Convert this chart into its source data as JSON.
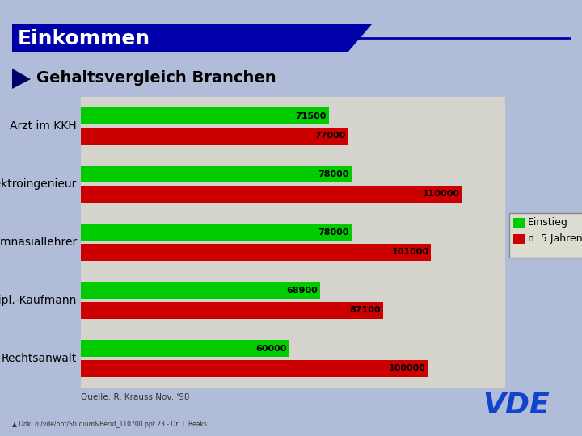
{
  "title": "Einkommen",
  "subtitle": "Gehaltsvergleich Branchen",
  "categories": [
    "Arzt im KKH",
    "Elektroingenieur",
    "Gymnasiallehrer",
    "Dipl.-Kaufmann",
    "Rechtsanwalt"
  ],
  "einstieg": [
    71500,
    78000,
    78000,
    68900,
    60000
  ],
  "n5jahren": [
    77000,
    110000,
    101000,
    87100,
    100000
  ],
  "bar_color_green": "#00CC00",
  "bar_color_red": "#CC0000",
  "bg_slide": "#B0BCD8",
  "bg_chart": "#D4D4CC",
  "bg_title": "#0000AA",
  "title_text_color": "#FFFFFF",
  "legend_label_green": "Einstieg",
  "legend_label_red": "n. 5 Jahren",
  "source_text": "Quelle: R. Krauss Nov. '98",
  "vde_color": "#1144CC",
  "footer_text": "Dok: o:/vde/ppt/Studium&Beruf_110700.ppt 23 - Dr. T. Beaks"
}
